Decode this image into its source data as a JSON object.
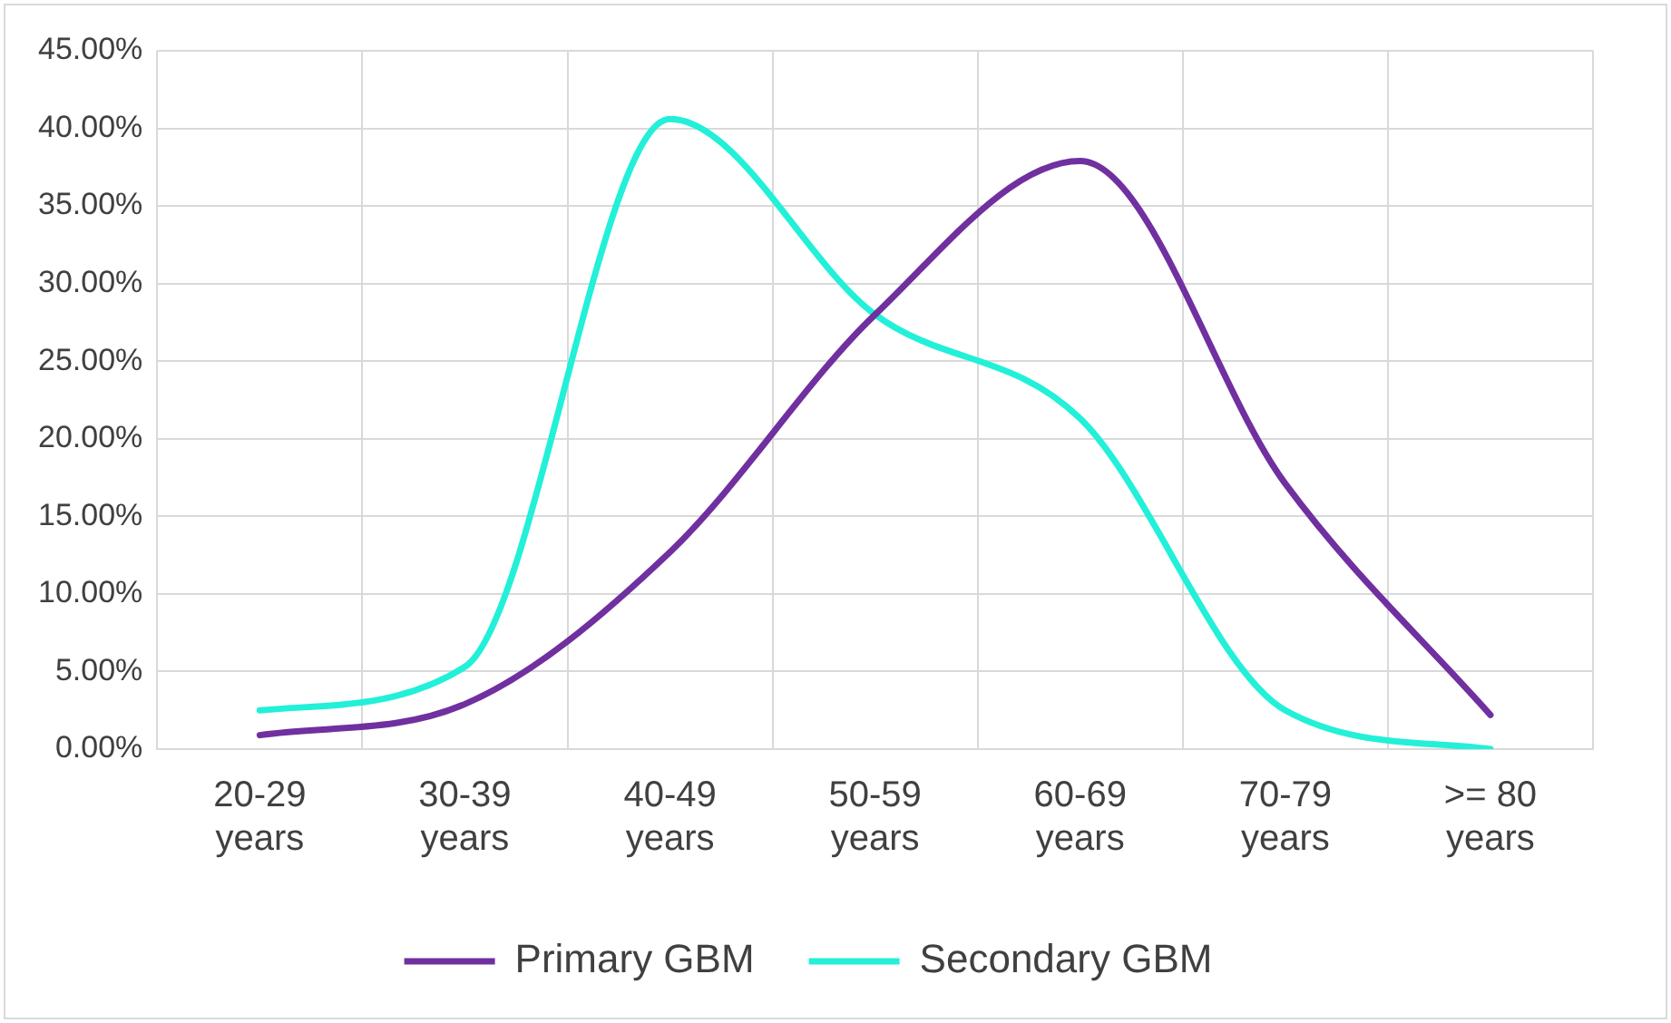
{
  "chart_data": {
    "type": "line",
    "categories": [
      "20-29 years",
      "30-39 years",
      "40-49 years",
      "50-59 years",
      "60-69 years",
      "70-79 years",
      ">= 80 years"
    ],
    "series": [
      {
        "name": "Primary GBM",
        "color": "#7030a0",
        "values": [
          0.9,
          2.9,
          12.7,
          28,
          37.9,
          17.1,
          2.2
        ]
      },
      {
        "name": "Secondary GBM",
        "color": "#22f0d8",
        "values": [
          2.5,
          5.3,
          40.6,
          28,
          21.3,
          2.5,
          0
        ]
      }
    ],
    "ylim": [
      0,
      45
    ],
    "yticks": [
      {
        "value": 0,
        "label": "0.00%"
      },
      {
        "value": 5,
        "label": "5.00%"
      },
      {
        "value": 10,
        "label": "10.00%"
      },
      {
        "value": 15,
        "label": "15.00%"
      },
      {
        "value": 20,
        "label": "20.00%"
      },
      {
        "value": 25,
        "label": "25.00%"
      },
      {
        "value": 30,
        "label": "30.00%"
      },
      {
        "value": 35,
        "label": "35.00%"
      },
      {
        "value": 40,
        "label": "40.00%"
      },
      {
        "value": 45,
        "label": "45.00%"
      }
    ],
    "grid": true,
    "legend": "bottom",
    "marker": "none",
    "line_style": "solid"
  }
}
